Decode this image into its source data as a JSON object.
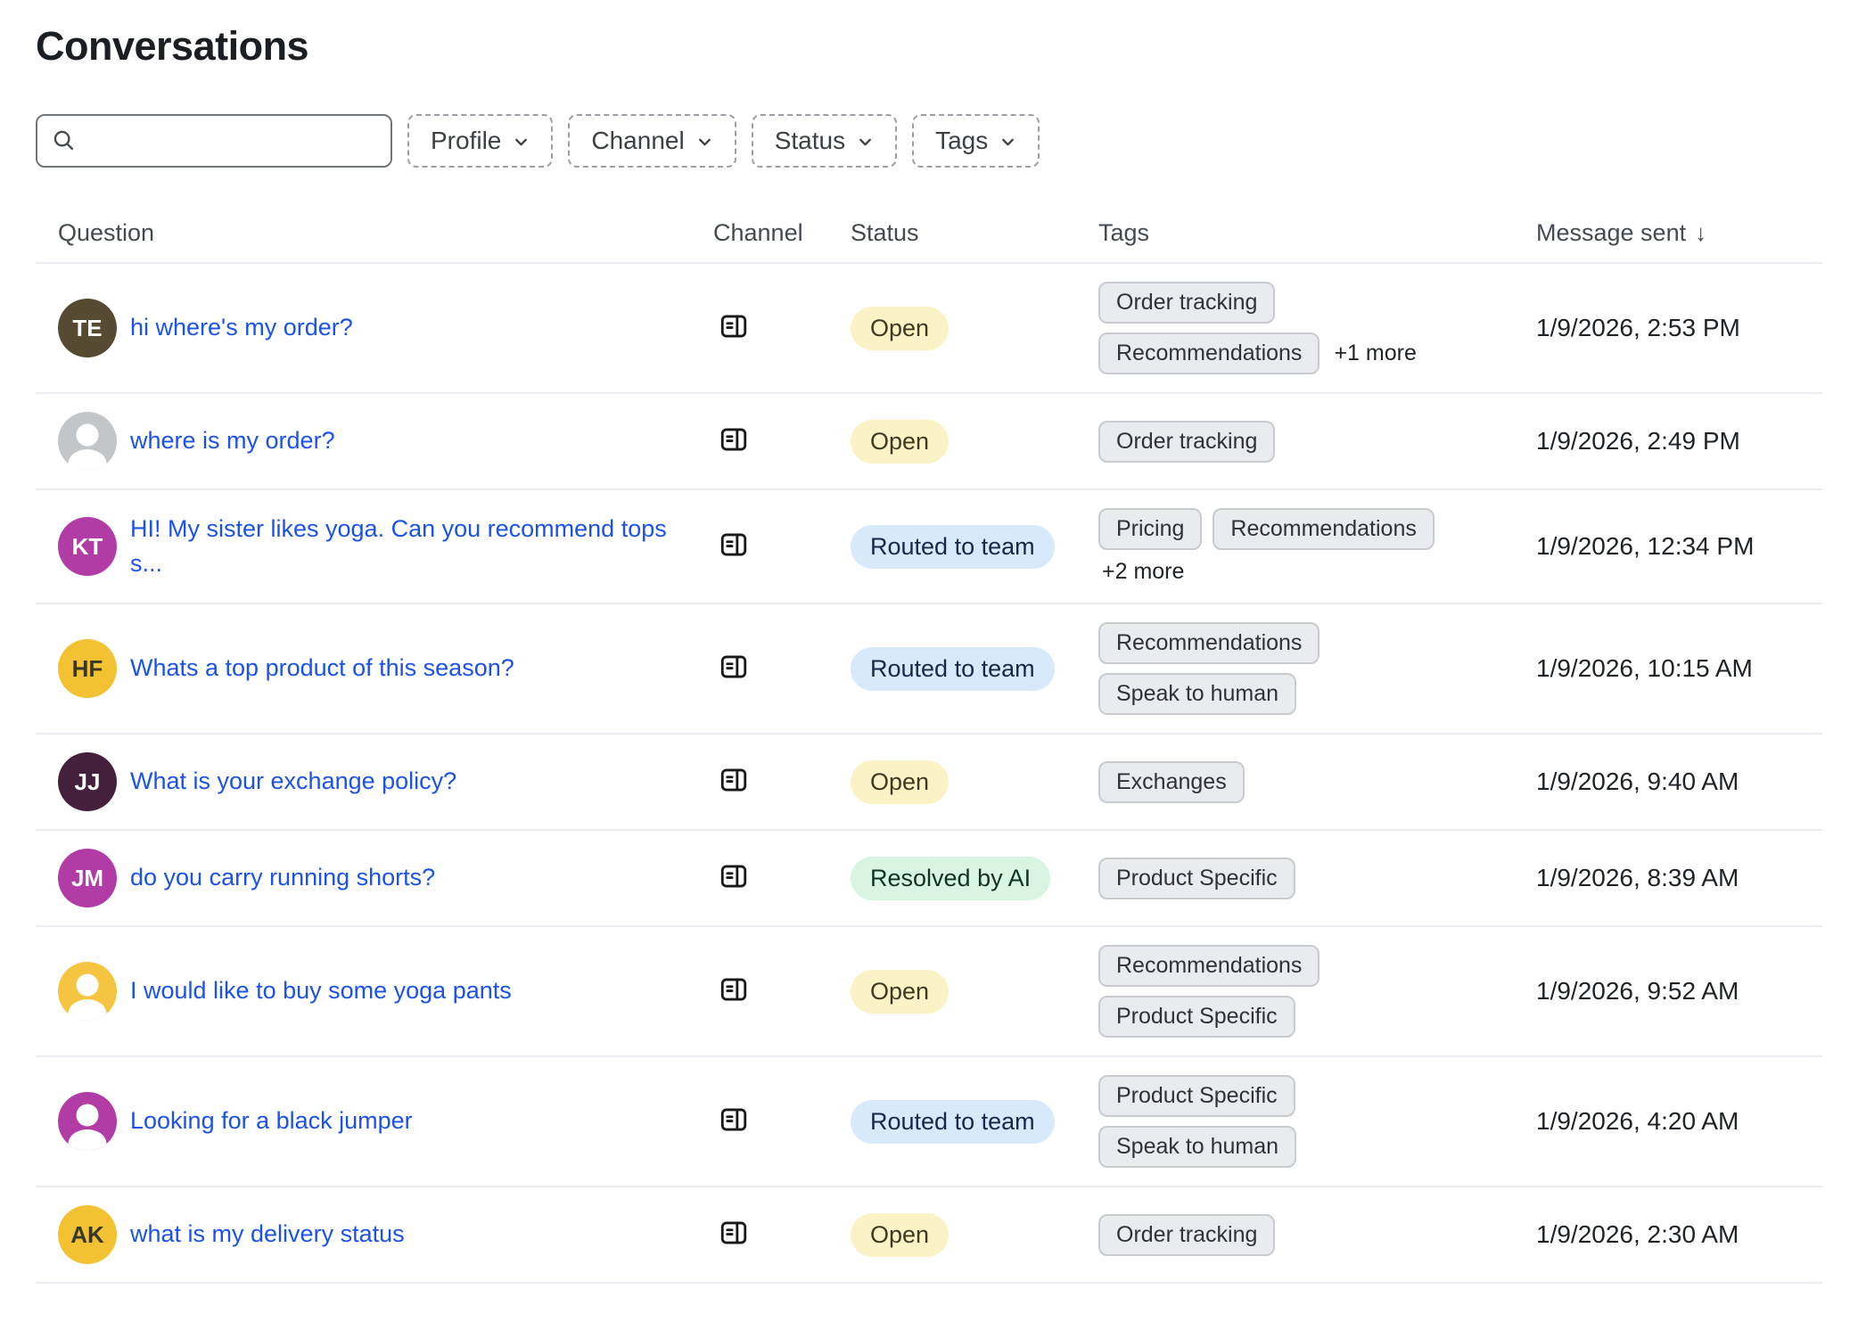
{
  "title": "Conversations",
  "colors": {
    "link": "#1b52ec",
    "tag_bg": "#e9ebee",
    "tag_border": "#c8cbd0",
    "tag_fg": "#2f3237",
    "separator": "#e9edf1"
  },
  "search": {
    "placeholder": ""
  },
  "filters": [
    {
      "id": "profile",
      "label": "Profile"
    },
    {
      "id": "channel",
      "label": "Channel"
    },
    {
      "id": "status",
      "label": "Status"
    },
    {
      "id": "tags",
      "label": "Tags"
    }
  ],
  "table": {
    "headers": {
      "question": "Question",
      "channel": "Channel",
      "status": "Status",
      "tags": "Tags",
      "message_sent": "Message sent",
      "sort_indicator": "↓"
    },
    "statuses": {
      "open": {
        "label": "Open",
        "bg": "#fbf3c5",
        "fg": "#3c3a22"
      },
      "routed": {
        "label": "Routed to team",
        "bg": "#d7e9fb",
        "fg": "#15294b"
      },
      "resolved": {
        "label": "Resolved by AI",
        "bg": "#d7f5e1",
        "fg": "#143122"
      }
    },
    "rows": [
      {
        "avatar": {
          "type": "initials",
          "text": "TE",
          "bg": "#564a33",
          "fg": "#ffffff"
        },
        "question": "hi where's my order?",
        "channel": "widget",
        "status": "open",
        "tag_lines": [
          {
            "tags": [
              "Order tracking"
            ]
          },
          {
            "tags": [
              "Recommendations"
            ],
            "more": "+1 more"
          }
        ],
        "message_sent": "1/9/2026, 2:53 PM"
      },
      {
        "avatar": {
          "type": "person",
          "bg": "#c3c6c9",
          "fg": "#ffffff"
        },
        "question": "where is my order?",
        "channel": "widget",
        "status": "open",
        "tag_lines": [
          {
            "tags": [
              "Order tracking"
            ]
          }
        ],
        "message_sent": "1/9/2026, 2:49 PM"
      },
      {
        "avatar": {
          "type": "initials",
          "text": "KT",
          "bg": "#b23ca6",
          "fg": "#ffffff"
        },
        "question": "HI! My sister likes yoga. Can you recommend tops s...",
        "channel": "widget",
        "status": "routed",
        "tag_lines": [
          {
            "tags": [
              "Pricing",
              "Recommendations"
            ]
          },
          {
            "tags": [],
            "more": "+2 more"
          }
        ],
        "message_sent": "1/9/2026, 12:34 PM"
      },
      {
        "avatar": {
          "type": "initials",
          "text": "HF",
          "bg": "#f2c233",
          "fg": "#39362a"
        },
        "question": "Whats a top product of this season?",
        "channel": "widget",
        "status": "routed",
        "tag_lines": [
          {
            "tags": [
              "Recommendations"
            ]
          },
          {
            "tags": [
              "Speak to human"
            ]
          }
        ],
        "message_sent": "1/9/2026, 10:15 AM"
      },
      {
        "avatar": {
          "type": "initials",
          "text": "JJ",
          "bg": "#45203d",
          "fg": "#ffffff"
        },
        "question": "What is your exchange policy?",
        "channel": "widget",
        "status": "open",
        "tag_lines": [
          {
            "tags": [
              "Exchanges"
            ]
          }
        ],
        "message_sent": "1/9/2026, 9:40 AM"
      },
      {
        "avatar": {
          "type": "initials",
          "text": "JM",
          "bg": "#b23ca6",
          "fg": "#ffffff"
        },
        "question": "do you carry running shorts?",
        "channel": "widget",
        "status": "resolved",
        "tag_lines": [
          {
            "tags": [
              "Product Specific"
            ]
          }
        ],
        "message_sent": "1/9/2026, 8:39 AM"
      },
      {
        "avatar": {
          "type": "person",
          "bg": "#f5c542",
          "fg": "#ffffff"
        },
        "question": "I would like to buy some yoga pants",
        "channel": "widget",
        "status": "open",
        "tag_lines": [
          {
            "tags": [
              "Recommendations"
            ]
          },
          {
            "tags": [
              "Product Specific"
            ]
          }
        ],
        "message_sent": "1/9/2026, 9:52 AM"
      },
      {
        "avatar": {
          "type": "person",
          "bg": "#b23ca6",
          "fg": "#ffffff"
        },
        "question": "Looking for a black jumper",
        "channel": "widget",
        "status": "routed",
        "tag_lines": [
          {
            "tags": [
              "Product Specific"
            ]
          },
          {
            "tags": [
              "Speak to human"
            ]
          }
        ],
        "message_sent": "1/9/2026, 4:20 AM"
      },
      {
        "avatar": {
          "type": "initials",
          "text": "AK",
          "bg": "#f2c233",
          "fg": "#39362a"
        },
        "question": "what is my delivery status",
        "channel": "widget",
        "status": "open",
        "tag_lines": [
          {
            "tags": [
              "Order tracking"
            ]
          }
        ],
        "message_sent": "1/9/2026, 2:30 AM"
      }
    ]
  }
}
